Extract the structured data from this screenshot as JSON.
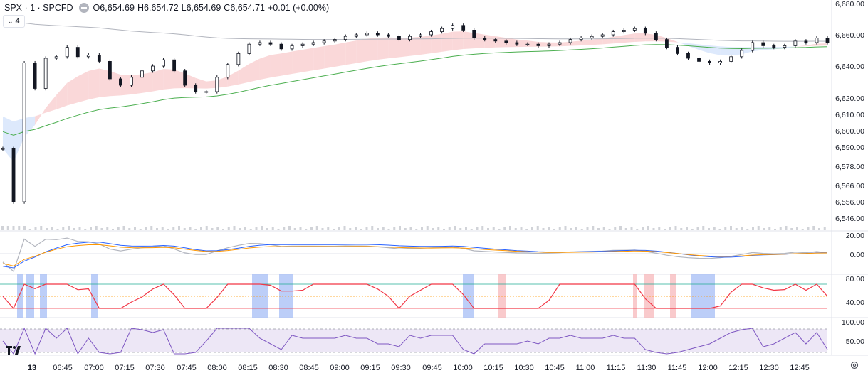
{
  "header": {
    "symbol": "SPX · 1 · SPCFD",
    "open_label": "O",
    "open": "6,654.69",
    "high_label": "H",
    "high": "6,654.72",
    "low_label": "L",
    "low": "6,654.69",
    "close_label": "C",
    "close": "6,654.71",
    "change": "+0.01 (+0.00%)"
  },
  "indicator_toggle": {
    "icon": "chevron-down-icon",
    "count": "4"
  },
  "colors": {
    "up_candle": "#131722",
    "ema_green": "#4caf50",
    "ema_gray": "#b2b5be",
    "cloud_red": "#f8c7c9",
    "cloud_blue": "#cfe0fb",
    "macd_blue": "#2962ff",
    "macd_orange": "#ff9800",
    "stoch_red": "#f23645",
    "stoch_green": "#22ab94",
    "rsi_purple": "#7e57c2",
    "rsi_band": "#ede7f6",
    "highlight_red": "#f7b3b7",
    "highlight_blue": "#9fb9f5"
  },
  "price_axis": [
    "6,680.00",
    "6,660.00",
    "6,640.00",
    "6,620.00",
    "6,610.00",
    "6,600.00",
    "6,590.00",
    "6,578.00",
    "6,566.00",
    "6,556.00",
    "6,546.00"
  ],
  "macd_axis": [
    "20.00",
    "0.00"
  ],
  "stoch_axis": [
    "80.00",
    "40.00"
  ],
  "rsi_axis": [
    "100.00",
    "50.00"
  ],
  "time_axis": [
    "13",
    "06:45",
    "07:00",
    "07:15",
    "07:30",
    "07:45",
    "08:00",
    "08:15",
    "08:30",
    "08:45",
    "09:00",
    "09:15",
    "09:30",
    "09:45",
    "10:00",
    "10:15",
    "10:30",
    "10:45",
    "11:00",
    "11:15",
    "11:30",
    "11:45",
    "12:00",
    "12:15",
    "12:30",
    "12:45"
  ],
  "chart_data": {
    "type": "line",
    "title": "SPX · 1 · SPCFD",
    "x": [
      "06:31",
      "06:35",
      "06:40",
      "06:45",
      "06:50",
      "06:55",
      "07:00",
      "07:05",
      "07:10",
      "07:15",
      "07:20",
      "07:25",
      "07:30",
      "07:35",
      "07:40",
      "07:45",
      "07:50",
      "07:55",
      "08:00",
      "08:05",
      "08:10",
      "08:15",
      "08:20",
      "08:25",
      "08:30",
      "08:35",
      "08:40",
      "08:45",
      "08:50",
      "08:55",
      "09:00",
      "09:05",
      "09:10",
      "09:15",
      "09:20",
      "09:25",
      "09:30",
      "09:35",
      "09:40",
      "09:45",
      "09:50",
      "09:55",
      "10:00",
      "10:05",
      "10:10",
      "10:15",
      "10:20",
      "10:25",
      "10:30",
      "10:35",
      "10:40",
      "10:45",
      "10:50",
      "10:55",
      "11:00",
      "11:05",
      "11:10",
      "11:15",
      "11:20",
      "11:25",
      "11:30",
      "11:35",
      "11:40",
      "11:45",
      "11:50",
      "11:55",
      "12:00",
      "12:05",
      "12:10",
      "12:15",
      "12:20",
      "12:25",
      "12:30",
      "12:35",
      "12:40",
      "12:45",
      "12:50",
      "12:55"
    ],
    "series": [
      {
        "values": [
          6589,
          6556,
          6642,
          6626,
          6645,
          6646,
          6652,
          6646,
          6647,
          6643,
          6632,
          6628,
          6633,
          6637,
          6640,
          6644,
          6637,
          6628,
          6624,
          6624,
          6633,
          6641,
          6648,
          6654,
          6655,
          6654,
          6651,
          6653,
          6654,
          6655,
          6656,
          6657,
          6659,
          6660,
          6661,
          6660,
          6659,
          6657,
          6659,
          6660,
          6662,
          6664,
          6666,
          6663,
          6658,
          6657,
          6656,
          6655,
          6654,
          6654,
          6653,
          6654,
          6655,
          6657,
          6658,
          6659,
          6660,
          6662,
          6663,
          6664,
          6661,
          6657,
          6652,
          6648,
          6645,
          6643,
          6642,
          6643,
          6646,
          6650,
          6655,
          6653,
          6652,
          6653,
          6656,
          6655,
          6658,
          6655
        ]
      }
    ],
    "ylim": [
      6540,
      6681
    ],
    "grid": false
  }
}
